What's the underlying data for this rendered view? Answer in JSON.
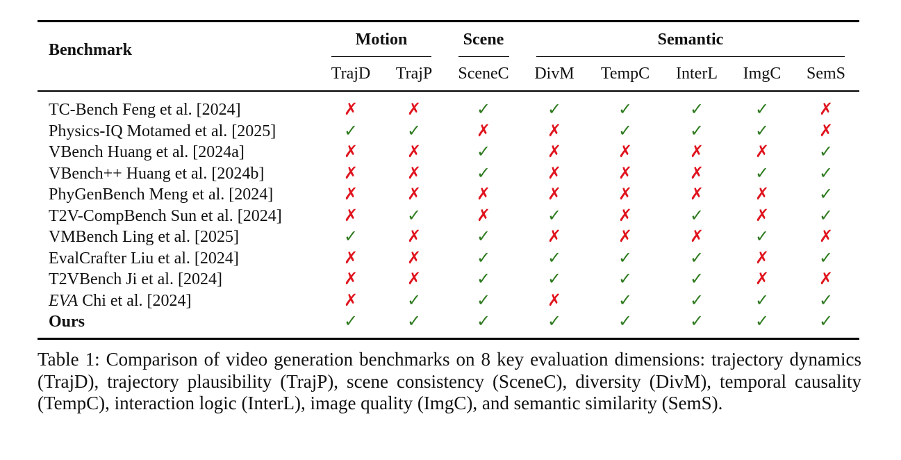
{
  "table": {
    "header": {
      "benchmark": "Benchmark",
      "groups": [
        {
          "label": "Motion"
        },
        {
          "label": "Scene"
        },
        {
          "label": "Semantic"
        }
      ],
      "columns": [
        "TrajD",
        "TrajP",
        "SceneC",
        "DivM",
        "TempC",
        "InterL",
        "ImgC",
        "SemS"
      ]
    },
    "rows": [
      {
        "prefix": "",
        "name": "TC-Bench Feng et al. [2024]",
        "marks": [
          "✗",
          "✗",
          "✓",
          "✓",
          "✓",
          "✓",
          "✓",
          "✗"
        ]
      },
      {
        "prefix": "",
        "name": "Physics-IQ Motamed et al. [2025]",
        "marks": [
          "✓",
          "✓",
          "✗",
          "✗",
          "✓",
          "✓",
          "✓",
          "✗"
        ]
      },
      {
        "prefix": "",
        "name": "VBench Huang et al. [2024a]",
        "marks": [
          "✗",
          "✗",
          "✓",
          "✗",
          "✗",
          "✗",
          "✗",
          "✓"
        ]
      },
      {
        "prefix": "",
        "name": "VBench++ Huang et al. [2024b]",
        "marks": [
          "✗",
          "✗",
          "✓",
          "✗",
          "✗",
          "✗",
          "✓",
          "✓"
        ]
      },
      {
        "prefix": "",
        "name": "PhyGenBench Meng et al. [2024]",
        "marks": [
          "✗",
          "✗",
          "✗",
          "✗",
          "✗",
          "✗",
          "✗",
          "✓"
        ]
      },
      {
        "prefix": "",
        "name": "T2V-CompBench Sun et al. [2024]",
        "marks": [
          "✗",
          "✓",
          "✗",
          "✓",
          "✗",
          "✓",
          "✗",
          "✓"
        ]
      },
      {
        "prefix": "",
        "name": "VMBench Ling et al. [2025]",
        "marks": [
          "✓",
          "✗",
          "✓",
          "✗",
          "✗",
          "✗",
          "✓",
          "✗"
        ]
      },
      {
        "prefix": "",
        "name": "EvalCrafter Liu et al. [2024]",
        "marks": [
          "✗",
          "✗",
          "✓",
          "✓",
          "✓",
          "✓",
          "✗",
          "✓"
        ]
      },
      {
        "prefix": "",
        "name": "T2VBench Ji et al. [2024]",
        "marks": [
          "✗",
          "✗",
          "✓",
          "✓",
          "✓",
          "✓",
          "✗",
          "✗"
        ]
      },
      {
        "prefix": "EVA",
        "name": " Chi et al. [2024]",
        "marks": [
          "✗",
          "✓",
          "✓",
          "✗",
          "✓",
          "✓",
          "✓",
          "✓"
        ]
      },
      {
        "prefix": "",
        "name": "Ours",
        "bold": true,
        "marks": [
          "✓",
          "✓",
          "✓",
          "✓",
          "✓",
          "✓",
          "✓",
          "✓"
        ]
      }
    ]
  },
  "caption": "Table 1: Comparison of video generation benchmarks on 8 key evaluation dimensions: trajectory dynamics (TrajD), trajectory plausibility (TrajP), scene consistency (SceneC), diversity (DivM), temporal causality (TempC), interaction logic (InterL), image quality (ImgC), and semantic similarity (SemS).",
  "colors": {
    "check": "#2d7a1e",
    "cross": "#e0141e"
  }
}
